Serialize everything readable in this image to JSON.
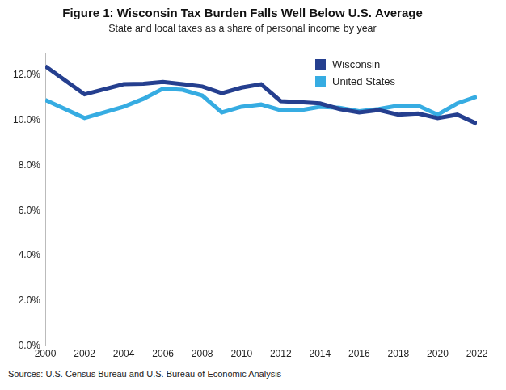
{
  "chart_data": {
    "type": "line",
    "title": "Figure 1: Wisconsin Tax Burden Falls Well Below U.S. Average",
    "subtitle": "State and local taxes as a share of personal income by year",
    "annotations": [
      "Sources: U.S. Census Bureau and U.S. Bureau of Economic Analysis"
    ],
    "x": [
      2000,
      2002,
      2004,
      2005,
      2006,
      2007,
      2008,
      2009,
      2010,
      2011,
      2012,
      2013,
      2014,
      2015,
      2016,
      2017,
      2018,
      2019,
      2020,
      2021,
      2022
    ],
    "series": [
      {
        "name": "Wisconsin",
        "color": "#253f8f",
        "values": [
          12.4,
          11.15,
          11.6,
          11.62,
          11.7,
          11.6,
          11.5,
          11.2,
          11.45,
          11.6,
          10.85,
          10.8,
          10.75,
          10.5,
          10.35,
          10.45,
          10.25,
          10.3,
          10.1,
          10.25,
          9.85
        ]
      },
      {
        "name": "United States",
        "color": "#36ace2",
        "values": [
          10.9,
          10.1,
          10.6,
          10.95,
          11.4,
          11.35,
          11.1,
          10.35,
          10.6,
          10.7,
          10.45,
          10.45,
          10.6,
          10.55,
          10.4,
          10.5,
          10.65,
          10.65,
          10.25,
          10.75,
          11.05
        ]
      }
    ],
    "xlim": [
      2000,
      2022
    ],
    "xticks": [
      2000,
      2002,
      2004,
      2006,
      2008,
      2010,
      2012,
      2014,
      2016,
      2018,
      2020,
      2022
    ],
    "ylim": [
      0,
      13
    ],
    "yticks": [
      {
        "value": 0,
        "label": "0.0%"
      },
      {
        "value": 2,
        "label": "2.0%"
      },
      {
        "value": 4,
        "label": "4.0%"
      },
      {
        "value": 6,
        "label": "6.0%"
      },
      {
        "value": 8,
        "label": "8.0%"
      },
      {
        "value": 10,
        "label": "10.0%"
      },
      {
        "value": 12,
        "label": "12.0%"
      }
    ],
    "grid": false,
    "legend": "upper right"
  }
}
